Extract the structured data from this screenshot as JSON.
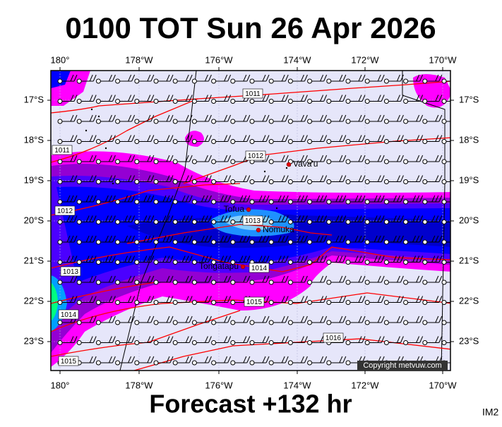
{
  "title": "0100 TOT Sun 26 Apr 2026",
  "longitude_labels": [
    "180°",
    "178°W",
    "176°W",
    "174°W",
    "172°W",
    "170°W"
  ],
  "latitude_labels": [
    "17°S",
    "18°S",
    "19°S",
    "20°S",
    "21°S",
    "22°S",
    "23°S"
  ],
  "isobar_labels": [
    "1011",
    "1011",
    "1012",
    "1012",
    "1013",
    "1014",
    "1013",
    "1014",
    "1015",
    "1016",
    "1015"
  ],
  "places": [
    "Vava'u",
    "Tofua",
    "Nomuka",
    "Tongatapu"
  ],
  "copyright": "Copyright metvuw.com",
  "footer": "Forecast +132 hr",
  "corner": "IM2"
}
